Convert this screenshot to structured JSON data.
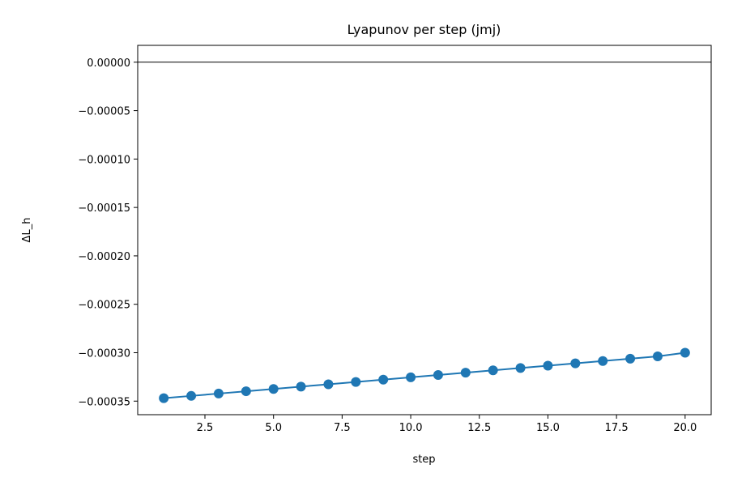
{
  "chart_data": {
    "type": "line",
    "title": "Lyapunov per step (jmj)",
    "xlabel": "step",
    "ylabel": "ΔL_h",
    "xlim": [
      0.05,
      20.95
    ],
    "ylim": [
      -0.000364,
      1.74e-05
    ],
    "x_ticks": [
      2.5,
      5.0,
      7.5,
      10.0,
      12.5,
      15.0,
      17.5,
      20.0
    ],
    "x_tick_labels": [
      "2.5",
      "5.0",
      "7.5",
      "10.0",
      "12.5",
      "15.0",
      "17.5",
      "20.0"
    ],
    "y_ticks": [
      0.0,
      -5e-05,
      -0.0001,
      -0.00015,
      -0.0002,
      -0.00025,
      -0.0003,
      -0.00035
    ],
    "y_tick_labels": [
      "0.00000",
      "−0.00005",
      "−0.00010",
      "−0.00015",
      "−0.00020",
      "−0.00025",
      "−0.00030",
      "−0.00035"
    ],
    "grid": false,
    "reference_line_y": 0.0,
    "series": [
      {
        "marker": "circle",
        "color": "#1f77b4",
        "x": [
          1,
          2,
          3,
          4,
          5,
          6,
          7,
          8,
          9,
          10,
          11,
          12,
          13,
          14,
          15,
          16,
          17,
          18,
          19,
          20
        ],
        "values": [
          -0.000347,
          -0.0003446,
          -0.0003422,
          -0.0003398,
          -0.0003374,
          -0.000335,
          -0.0003326,
          -0.0003302,
          -0.0003278,
          -0.0003254,
          -0.000323,
          -0.0003206,
          -0.0003182,
          -0.0003158,
          -0.0003134,
          -0.000311,
          -0.0003086,
          -0.0003062,
          -0.0003038,
          -0.0003
        ]
      }
    ]
  }
}
